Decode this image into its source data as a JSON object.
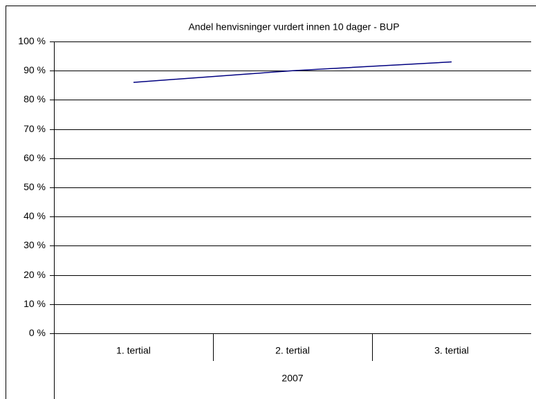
{
  "chart_data": {
    "type": "line",
    "title": "Andel henvisninger vurdert innen 10 dager - BUP",
    "categories": [
      "1. tertial",
      "2. tertial",
      "3. tertial"
    ],
    "category_group": "2007",
    "series": [
      {
        "name": "Andel",
        "color": "#000080",
        "values": [
          86,
          90,
          93
        ]
      }
    ],
    "ylim": [
      0,
      100
    ],
    "yticks": [
      {
        "value": 0,
        "label": "0 %"
      },
      {
        "value": 10,
        "label": "10 %"
      },
      {
        "value": 20,
        "label": "20 %"
      },
      {
        "value": 30,
        "label": "30 %"
      },
      {
        "value": 40,
        "label": "40 %"
      },
      {
        "value": 50,
        "label": "50 %"
      },
      {
        "value": 60,
        "label": "60 %"
      },
      {
        "value": 70,
        "label": "70 %"
      },
      {
        "value": 80,
        "label": "80 %"
      },
      {
        "value": 90,
        "label": "90 %"
      },
      {
        "value": 100,
        "label": "100 %"
      }
    ],
    "grid": true
  }
}
